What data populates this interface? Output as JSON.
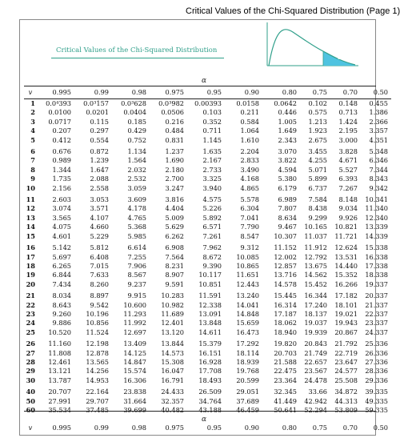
{
  "window": {
    "title": "Critical Values of the Chi-Squared Distribution (Page 1)"
  },
  "heading": "Critical Values of the Chi-Squared Distribution",
  "graph": {
    "alpha_label": "α",
    "fill_color": "#4fc3e0",
    "curve_color": "#2f9f8a"
  },
  "alpha_symbol": "α",
  "columns": {
    "df": "v",
    "alphas": [
      "0.995",
      "0.99",
      "0.98",
      "0.975",
      "0.95",
      "0.90",
      "0.80",
      "0.75",
      "0.70",
      "0.50"
    ]
  },
  "rows": [
    [
      "1",
      "0.0⁴393",
      "0.0³157",
      "0.0³628",
      "0.0³982",
      "0.00393",
      "0.0158",
      "0.0642",
      "0.102",
      "0.148",
      "0.455"
    ],
    [
      "2",
      "0.0100",
      "0.0201",
      "0.0404",
      "0.0506",
      "0.103",
      "0.211",
      "0.446",
      "0.575",
      "0.713",
      "1.386"
    ],
    [
      "3",
      "0.0717",
      "0.115",
      "0.185",
      "0.216",
      "0.352",
      "0.584",
      "1.005",
      "1.213",
      "1.424",
      "2.366"
    ],
    [
      "4",
      "0.207",
      "0.297",
      "0.429",
      "0.484",
      "0.711",
      "1.064",
      "1.649",
      "1.923",
      "2.195",
      "3.357"
    ],
    [
      "5",
      "0.412",
      "0.554",
      "0.752",
      "0.831",
      "1.145",
      "1.610",
      "2.343",
      "2.675",
      "3.000",
      "4.351"
    ],
    [
      "6",
      "0.676",
      "0.872",
      "1.134",
      "1.237",
      "1.635",
      "2.204",
      "3.070",
      "3.455",
      "3.828",
      "5.348"
    ],
    [
      "7",
      "0.989",
      "1.239",
      "1.564",
      "1.690",
      "2.167",
      "2.833",
      "3.822",
      "4.255",
      "4.671",
      "6.346"
    ],
    [
      "8",
      "1.344",
      "1.647",
      "2.032",
      "2.180",
      "2.733",
      "3.490",
      "4.594",
      "5.071",
      "5.527",
      "7.344"
    ],
    [
      "9",
      "1.735",
      "2.088",
      "2.532",
      "2.700",
      "3.325",
      "4.168",
      "5.380",
      "5.899",
      "6.393",
      "8.343"
    ],
    [
      "10",
      "2.156",
      "2.558",
      "3.059",
      "3.247",
      "3.940",
      "4.865",
      "6.179",
      "6.737",
      "7.267",
      "9.342"
    ],
    [
      "11",
      "2.603",
      "3.053",
      "3.609",
      "3.816",
      "4.575",
      "5.578",
      "6.989",
      "7.584",
      "8.148",
      "10.341"
    ],
    [
      "12",
      "3.074",
      "3.571",
      "4.178",
      "4.404",
      "5.226",
      "6.304",
      "7.807",
      "8.438",
      "9.034",
      "11.340"
    ],
    [
      "13",
      "3.565",
      "4.107",
      "4.765",
      "5.009",
      "5.892",
      "7.041",
      "8.634",
      "9.299",
      "9.926",
      "12.340"
    ],
    [
      "14",
      "4.075",
      "4.660",
      "5.368",
      "5.629",
      "6.571",
      "7.790",
      "9.467",
      "10.165",
      "10.821",
      "13.339"
    ],
    [
      "15",
      "4.601",
      "5.229",
      "5.985",
      "6.262",
      "7.261",
      "8.547",
      "10.307",
      "11.037",
      "11.721",
      "14.339"
    ],
    [
      "16",
      "5.142",
      "5.812",
      "6.614",
      "6.908",
      "7.962",
      "9.312",
      "11.152",
      "11.912",
      "12.624",
      "15.338"
    ],
    [
      "17",
      "5.697",
      "6.408",
      "7.255",
      "7.564",
      "8.672",
      "10.085",
      "12.002",
      "12.792",
      "13.531",
      "16.338"
    ],
    [
      "18",
      "6.265",
      "7.015",
      "7.906",
      "8.231",
      "9.390",
      "10.865",
      "12.857",
      "13.675",
      "14.440",
      "17.338"
    ],
    [
      "19",
      "6.844",
      "7.633",
      "8.567",
      "8.907",
      "10.117",
      "11.651",
      "13.716",
      "14.562",
      "15.352",
      "18.338"
    ],
    [
      "20",
      "7.434",
      "8.260",
      "9.237",
      "9.591",
      "10.851",
      "12.443",
      "14.578",
      "15.452",
      "16.266",
      "19.337"
    ],
    [
      "21",
      "8.034",
      "8.897",
      "9.915",
      "10.283",
      "11.591",
      "13.240",
      "15.445",
      "16.344",
      "17.182",
      "20.337"
    ],
    [
      "22",
      "8.643",
      "9.542",
      "10.600",
      "10.982",
      "12.338",
      "14.041",
      "16.314",
      "17.240",
      "18.101",
      "21.337"
    ],
    [
      "23",
      "9.260",
      "10.196",
      "11.293",
      "11.689",
      "13.091",
      "14.848",
      "17.187",
      "18.137",
      "19.021",
      "22.337"
    ],
    [
      "24",
      "9.886",
      "10.856",
      "11.992",
      "12.401",
      "13.848",
      "15.659",
      "18.062",
      "19.037",
      "19.943",
      "23.337"
    ],
    [
      "25",
      "10.520",
      "11.524",
      "12.697",
      "13.120",
      "14.611",
      "16.473",
      "18.940",
      "19.939",
      "20.867",
      "24.337"
    ],
    [
      "26",
      "11.160",
      "12.198",
      "13.409",
      "13.844",
      "15.379",
      "17.292",
      "19.820",
      "20.843",
      "21.792",
      "25.336"
    ],
    [
      "27",
      "11.808",
      "12.878",
      "14.125",
      "14.573",
      "16.151",
      "18.114",
      "20.703",
      "21.749",
      "22.719",
      "26.336"
    ],
    [
      "28",
      "12.461",
      "13.565",
      "14.847",
      "15.308",
      "16.928",
      "18.939",
      "21.588",
      "22.657",
      "23.647",
      "27.336"
    ],
    [
      "29",
      "13.121",
      "14.256",
      "15.574",
      "16.047",
      "17.708",
      "19.768",
      "22.475",
      "23.567",
      "24.577",
      "28.336"
    ],
    [
      "30",
      "13.787",
      "14.953",
      "16.306",
      "16.791",
      "18.493",
      "20.599",
      "23.364",
      "24.478",
      "25.508",
      "29.336"
    ],
    [
      "40",
      "20.707",
      "22.164",
      "23.838",
      "24.433",
      "26.509",
      "29.051",
      "32.345",
      "33.66",
      "34.872",
      "39.335"
    ],
    [
      "50",
      "27.991",
      "29.707",
      "31.664",
      "32.357",
      "34.764",
      "37.689",
      "41.449",
      "42.942",
      "44.313",
      "49.335"
    ],
    [
      "60",
      "35.534",
      "37.485",
      "39.699",
      "40.482",
      "43.188",
      "46.459",
      "50.641",
      "52.294",
      "53.809",
      "59.335"
    ]
  ]
}
